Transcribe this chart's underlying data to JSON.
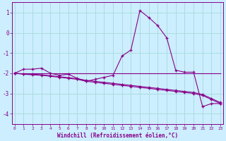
{
  "xlabel": "Windchill (Refroidissement éolien,°C)",
  "background_color": "#cceeff",
  "grid_color": "#aadddd",
  "line_color": "#880088",
  "hours": [
    0,
    1,
    2,
    3,
    4,
    5,
    6,
    7,
    8,
    9,
    10,
    11,
    12,
    13,
    14,
    15,
    16,
    17,
    18,
    19,
    20,
    21,
    22,
    23
  ],
  "series_main": [
    -2.0,
    -1.8,
    -1.8,
    -1.75,
    -2.0,
    -2.1,
    -2.05,
    -2.25,
    -2.4,
    -2.3,
    -2.2,
    -2.1,
    -1.15,
    -0.85,
    1.1,
    0.75,
    0.35,
    -0.25,
    -1.85,
    -1.95,
    -1.95,
    -3.65,
    -3.5,
    -3.5
  ],
  "series_flat": [
    -2.0,
    -2.0,
    -2.0,
    -2.0,
    -2.0,
    -2.0,
    -2.0,
    -2.0,
    -2.0,
    -2.0,
    -2.0,
    -2.0,
    -2.0,
    -2.0,
    -2.0,
    -2.0,
    -2.0,
    -2.0,
    -2.0,
    -2.0,
    -2.0,
    -2.0,
    -2.0,
    -2.0
  ],
  "series_slope1": [
    -2.0,
    -2.05,
    -2.08,
    -2.1,
    -2.15,
    -2.2,
    -2.25,
    -2.3,
    -2.4,
    -2.45,
    -2.5,
    -2.55,
    -2.6,
    -2.65,
    -2.7,
    -2.75,
    -2.8,
    -2.85,
    -2.9,
    -2.95,
    -3.0,
    -3.1,
    -3.3,
    -3.5
  ],
  "series_slope2": [
    -2.0,
    -2.03,
    -2.05,
    -2.08,
    -2.12,
    -2.17,
    -2.22,
    -2.27,
    -2.35,
    -2.4,
    -2.45,
    -2.5,
    -2.55,
    -2.6,
    -2.65,
    -2.7,
    -2.75,
    -2.8,
    -2.85,
    -2.9,
    -2.95,
    -3.05,
    -3.25,
    -3.45
  ],
  "ylim": [
    -4.5,
    1.5
  ],
  "xlim": [
    -0.3,
    23.3
  ],
  "yticks": [
    -4,
    -3,
    -2,
    -1,
    0,
    1
  ],
  "xtick_labels": [
    "0",
    "1",
    "2",
    "3",
    "4",
    "5",
    "6",
    "7",
    "8",
    "9",
    "10",
    "11",
    "12",
    "13",
    "14",
    "15",
    "16",
    "17",
    "18",
    "19",
    "20",
    "21",
    "22",
    "23"
  ],
  "figsize": [
    3.2,
    2.0
  ],
  "dpi": 100
}
